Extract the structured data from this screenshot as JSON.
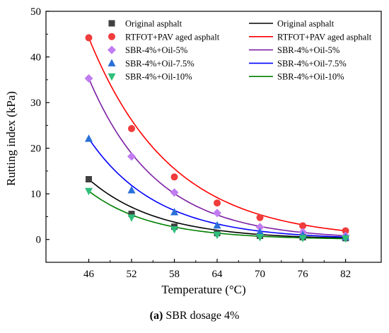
{
  "chart_data": {
    "type": "scatter",
    "xlabel": "Temperature (°C)",
    "ylabel": "Rutting index (kPa)",
    "xlim": [
      40,
      87
    ],
    "ylim": [
      -5,
      50
    ],
    "xticks": [
      46,
      52,
      58,
      64,
      70,
      76,
      82
    ],
    "yticks": [
      0,
      10,
      20,
      30,
      40,
      50
    ],
    "grid": false,
    "legend_position": "top-right",
    "x": [
      46,
      52,
      58,
      64,
      70,
      76,
      82
    ],
    "series": [
      {
        "name": "Original asphalt",
        "fit_name": "Original asphalt",
        "marker": "square",
        "color": "#404040",
        "line_color": "#000000",
        "values": [
          13.2,
          5.6,
          2.8,
          1.4,
          0.8,
          0.5,
          0.3
        ]
      },
      {
        "name": "RTFOT+PAV aged asphalt",
        "fit_name": "RTFOT+PAV aged asphalt",
        "marker": "circle",
        "color": "#f03c3c",
        "line_color": "#ff0000",
        "values": [
          44.2,
          24.3,
          13.7,
          8.0,
          4.8,
          3.0,
          1.9
        ]
      },
      {
        "name": "SBR-4%+Oil-5%",
        "fit_name": "SBR-4%+Oil-5%",
        "marker": "diamond",
        "color": "#c07cf0",
        "line_color": "#7b1fa2",
        "values": [
          35.3,
          18.2,
          10.3,
          5.8,
          2.7,
          1.6,
          0.8
        ]
      },
      {
        "name": "SBR-4%+Oil-7.5%",
        "fit_name": "SBR-4%+Oil-7.5%",
        "marker": "triangle-up",
        "color": "#2a70d8",
        "line_color": "#0000ff",
        "values": [
          22.1,
          10.8,
          6.0,
          3.1,
          1.6,
          1.0,
          0.5
        ]
      },
      {
        "name": "SBR-4%+Oil-10%",
        "fit_name": "SBR-4%+Oil-10%",
        "marker": "triangle-down",
        "color": "#2fbf7a",
        "line_color": "#008000",
        "values": [
          10.6,
          4.8,
          2.2,
          1.0,
          0.5,
          0.3,
          0.2
        ]
      }
    ]
  },
  "caption": {
    "label": "(a)",
    "text": " SBR dosage 4%"
  }
}
